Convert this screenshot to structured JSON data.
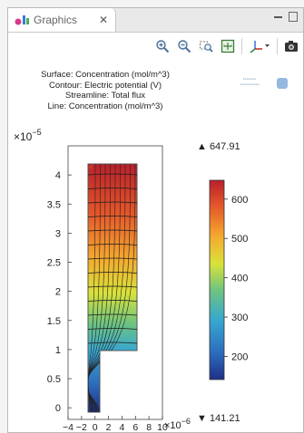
{
  "window": {
    "tab_title": "Graphics",
    "tab_icon": "comsol-graphics-icon"
  },
  "toolbar": {
    "buttons": [
      {
        "name": "zoom-in-icon"
      },
      {
        "name": "zoom-out-icon"
      },
      {
        "name": "zoom-box-icon"
      },
      {
        "name": "zoom-extents-icon"
      },
      {
        "name": "axis-orientation-dropdown-icon"
      },
      {
        "name": "camera-snapshot-icon"
      }
    ]
  },
  "plot": {
    "title_lines": [
      "Surface: Concentration (mol/m^3)",
      "Contour: Electric potential (V)",
      "Streamline: Total flux",
      "Line: Concentration (mol/m^3)"
    ],
    "y_exponent_label": "×10",
    "y_exponent_power": "−5",
    "x_exponent_label": "×10",
    "x_exponent_power": "−6",
    "colorbar_max_label": "▲ 647.91",
    "colorbar_min_label": "▼ 141.21"
  },
  "chart_data": {
    "type": "heatmap",
    "x_ticks": [
      "−4",
      "−2",
      "0",
      "2",
      "4",
      "6",
      "8",
      "10"
    ],
    "x_range": [
      -4,
      10
    ],
    "y_ticks": [
      "0",
      "0.5",
      "1",
      "1.5",
      "2",
      "2.5",
      "3",
      "3.5",
      "4"
    ],
    "y_range": [
      -0.2,
      4.5
    ],
    "colorbar": {
      "min": 141.21,
      "max": 647.91,
      "ticks": [
        200,
        300,
        400,
        500,
        600
      ],
      "colors": [
        "#1f2f86",
        "#2d6fbf",
        "#38a8cf",
        "#6fc47f",
        "#d9e23a",
        "#f4a92f",
        "#e4572a",
        "#b8202b"
      ]
    },
    "colorbar_tick_labels": [
      "600",
      "500",
      "400",
      "300",
      "200"
    ]
  }
}
